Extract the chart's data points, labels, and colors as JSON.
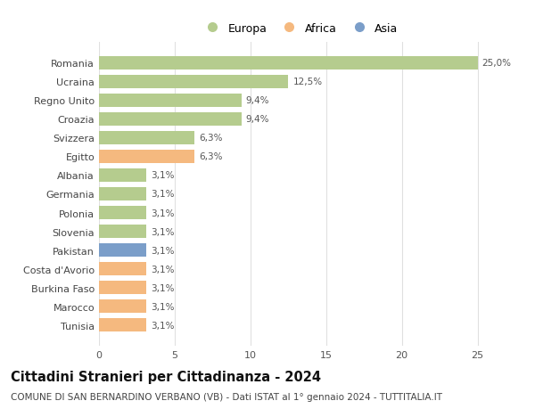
{
  "categories": [
    "Romania",
    "Ucraina",
    "Regno Unito",
    "Croazia",
    "Svizzera",
    "Egitto",
    "Albania",
    "Germania",
    "Polonia",
    "Slovenia",
    "Pakistan",
    "Costa d'Avorio",
    "Burkina Faso",
    "Marocco",
    "Tunisia"
  ],
  "values": [
    25.0,
    12.5,
    9.4,
    9.4,
    6.3,
    6.3,
    3.1,
    3.1,
    3.1,
    3.1,
    3.1,
    3.1,
    3.1,
    3.1,
    3.1
  ],
  "labels": [
    "25,0%",
    "12,5%",
    "9,4%",
    "9,4%",
    "6,3%",
    "6,3%",
    "3,1%",
    "3,1%",
    "3,1%",
    "3,1%",
    "3,1%",
    "3,1%",
    "3,1%",
    "3,1%",
    "3,1%"
  ],
  "colors": [
    "#b5cc8e",
    "#b5cc8e",
    "#b5cc8e",
    "#b5cc8e",
    "#b5cc8e",
    "#f5b97f",
    "#b5cc8e",
    "#b5cc8e",
    "#b5cc8e",
    "#b5cc8e",
    "#7b9ec9",
    "#f5b97f",
    "#f5b97f",
    "#f5b97f",
    "#f5b97f"
  ],
  "legend": [
    {
      "label": "Europa",
      "color": "#b5cc8e"
    },
    {
      "label": "Africa",
      "color": "#f5b97f"
    },
    {
      "label": "Asia",
      "color": "#7b9ec9"
    }
  ],
  "xlim": [
    0,
    26.5
  ],
  "xticks": [
    0,
    5,
    10,
    15,
    20,
    25
  ],
  "title": "Cittadini Stranieri per Cittadinanza - 2024",
  "subtitle": "COMUNE DI SAN BERNARDINO VERBANO (VB) - Dati ISTAT al 1° gennaio 2024 - TUTTITALIA.IT",
  "title_fontsize": 10.5,
  "subtitle_fontsize": 7.5,
  "label_fontsize": 7.5,
  "tick_fontsize": 8,
  "legend_fontsize": 9,
  "bg_color": "#ffffff",
  "grid_color": "#e0e0e0",
  "bar_height": 0.72
}
